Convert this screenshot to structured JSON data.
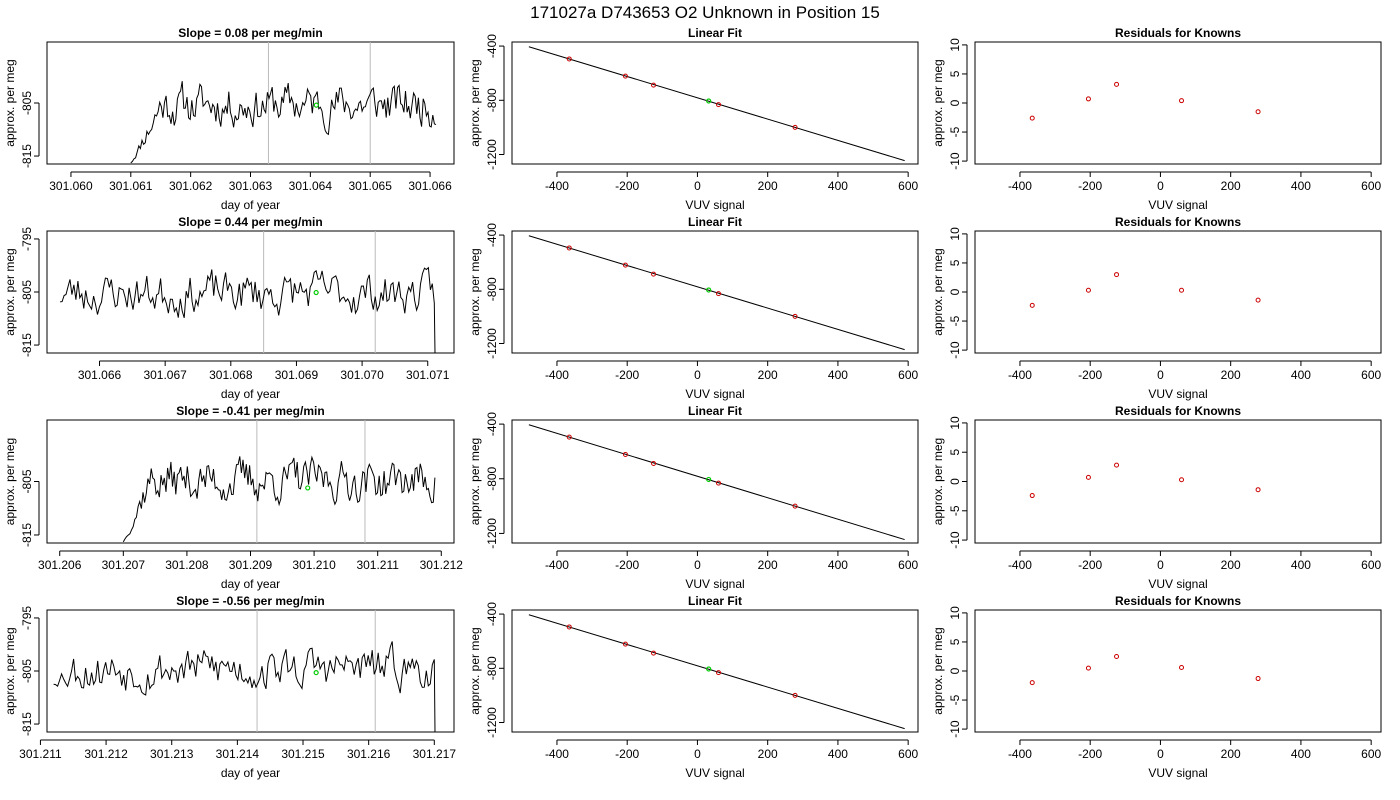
{
  "title": "171027a      D743653    O2 Unknown in Position  15",
  "colors": {
    "known": "#cc0000",
    "unknown": "#00cc00",
    "vline": "#bbbbbb",
    "line": "#000000"
  },
  "rows": [
    {
      "timeseries": {
        "title": "Slope =  0.08  per meg/min",
        "xlabel": "day of year",
        "ylabel": "approx. per meg",
        "xlim": [
          301.0596,
          301.0664
        ],
        "ylim": [
          -816.5,
          -793.5
        ],
        "xticks": [
          301.06,
          301.061,
          301.062,
          301.063,
          301.064,
          301.065,
          301.066
        ],
        "xtick_labels": [
          "301.060",
          "301.061",
          "301.062",
          "301.063",
          "301.064",
          "301.065",
          "301.066"
        ],
        "yticks": [
          -805,
          -815
        ],
        "ytick_labels": [
          "-805",
          "-815"
        ],
        "x_start": 301.061,
        "x_end": 301.0661,
        "start_level": -816.5,
        "ramp_end": 301.0615,
        "mean": -805.3,
        "vlines": [
          301.0633,
          301.065
        ],
        "unknown_point": {
          "x": 301.0641,
          "y": -805.4
        },
        "seed": 11
      },
      "fit": {
        "title": "Linear Fit",
        "xlabel": "VUV signal",
        "ylabel": "approx. per meg",
        "xlim": [
          -528,
          628
        ],
        "ylim": [
          -1270,
          -370
        ],
        "xticks": [
          -400,
          -200,
          0,
          200,
          400,
          600
        ],
        "xtick_labels": [
          "-400",
          "-200",
          "0",
          "200",
          "400",
          "600"
        ],
        "yticks": [
          -400,
          -800,
          -1200
        ],
        "ytick_labels": [
          "-400",
          "-800",
          "-1200"
        ],
        "line": {
          "x": [
            -480,
            590
          ],
          "y": [
            -405,
            -1245
          ]
        },
        "knowns": [
          {
            "x": -365,
            "y": -495
          },
          {
            "x": -205,
            "y": -622
          },
          {
            "x": -125,
            "y": -688
          },
          {
            "x": 60,
            "y": -832
          },
          {
            "x": 278,
            "y": -1000
          }
        ],
        "unknown": {
          "x": 32,
          "y": -805
        }
      },
      "residuals": {
        "title": "Residuals for Knowns",
        "xlabel": "VUV signal",
        "ylabel": "approx. per meg",
        "xlim": [
          -528,
          628
        ],
        "ylim": [
          -10.5,
          10.5
        ],
        "xticks": [
          -400,
          -200,
          0,
          200,
          400,
          600
        ],
        "xtick_labels": [
          "-400",
          "-200",
          "0",
          "200",
          "400",
          "600"
        ],
        "yticks": [
          10,
          5,
          0,
          -5,
          -10
        ],
        "ytick_labels": [
          "10",
          "5",
          "0",
          "-5",
          "-10"
        ],
        "points": [
          {
            "x": -365,
            "y": -2.6
          },
          {
            "x": -205,
            "y": 0.7
          },
          {
            "x": -125,
            "y": 3.2
          },
          {
            "x": 60,
            "y": 0.4
          },
          {
            "x": 278,
            "y": -1.5
          }
        ]
      }
    },
    {
      "timeseries": {
        "title": "Slope =  0.44  per meg/min",
        "xlabel": "day of year",
        "ylabel": "approx. per meg",
        "xlim": [
          301.0652,
          301.0714
        ],
        "ylim": [
          -816.5,
          -793.5
        ],
        "xticks": [
          301.066,
          301.067,
          301.068,
          301.069,
          301.07,
          301.071
        ],
        "xtick_labels": [
          "301.066",
          "301.067",
          "301.068",
          "301.069",
          "301.070",
          "301.071"
        ],
        "yticks": [
          -795,
          -805,
          -815
        ],
        "ytick_labels": [
          "-795",
          "-805",
          "-815"
        ],
        "x_start": 301.0654,
        "x_end": 301.0711,
        "start_level": null,
        "ramp_end": null,
        "mean": -805.2,
        "end_drop": -816.5,
        "vlines": [
          301.0685,
          301.0702
        ],
        "unknown_point": {
          "x": 301.0693,
          "y": -805.1
        },
        "seed": 23
      },
      "fit": {
        "title": "Linear Fit",
        "xlabel": "VUV signal",
        "ylabel": "approx. per meg",
        "xlim": [
          -528,
          628
        ],
        "ylim": [
          -1270,
          -370
        ],
        "xticks": [
          -400,
          -200,
          0,
          200,
          400,
          600
        ],
        "xtick_labels": [
          "-400",
          "-200",
          "0",
          "200",
          "400",
          "600"
        ],
        "yticks": [
          -400,
          -800,
          -1200
        ],
        "ytick_labels": [
          "-400",
          "-800",
          "-1200"
        ],
        "line": {
          "x": [
            -480,
            590
          ],
          "y": [
            -405,
            -1245
          ]
        },
        "knowns": [
          {
            "x": -365,
            "y": -495
          },
          {
            "x": -205,
            "y": -622
          },
          {
            "x": -125,
            "y": -688
          },
          {
            "x": 60,
            "y": -832
          },
          {
            "x": 278,
            "y": -1000
          }
        ],
        "unknown": {
          "x": 32,
          "y": -805
        }
      },
      "residuals": {
        "title": "Residuals for Knowns",
        "xlabel": "VUV signal",
        "ylabel": "approx. per meg",
        "xlim": [
          -528,
          628
        ],
        "ylim": [
          -10.5,
          10.5
        ],
        "xticks": [
          -400,
          -200,
          0,
          200,
          400,
          600
        ],
        "xtick_labels": [
          "-400",
          "-200",
          "0",
          "200",
          "400",
          "600"
        ],
        "yticks": [
          10,
          5,
          0,
          -5,
          -10
        ],
        "ytick_labels": [
          "10",
          "5",
          "0",
          "-5",
          "-10"
        ],
        "points": [
          {
            "x": -365,
            "y": -2.3
          },
          {
            "x": -205,
            "y": 0.3
          },
          {
            "x": -125,
            "y": 3.0
          },
          {
            "x": 60,
            "y": 0.3
          },
          {
            "x": 278,
            "y": -1.4
          }
        ]
      }
    },
    {
      "timeseries": {
        "title": "Slope =  -0.41  per meg/min",
        "xlabel": "day of year",
        "ylabel": "approx. per meg",
        "xlim": [
          301.2058,
          301.2122
        ],
        "ylim": [
          -816.5,
          -793.5
        ],
        "xticks": [
          301.206,
          301.207,
          301.208,
          301.209,
          301.21,
          301.211,
          301.212
        ],
        "xtick_labels": [
          "301.206",
          "301.207",
          "301.208",
          "301.209",
          "301.210",
          "301.211",
          "301.212"
        ],
        "yticks": [
          -805,
          -815
        ],
        "ytick_labels": [
          "-805",
          "-815"
        ],
        "x_start": 301.207,
        "x_end": 301.2119,
        "start_level": -816.5,
        "ramp_end": 301.2074,
        "mean": -804.8,
        "vlines": [
          301.2091,
          301.2108
        ],
        "unknown_point": {
          "x": 301.2099,
          "y": -806.2
        },
        "seed": 37
      },
      "fit": {
        "title": "Linear Fit",
        "xlabel": "VUV signal",
        "ylabel": "approx. per meg",
        "xlim": [
          -528,
          628
        ],
        "ylim": [
          -1270,
          -370
        ],
        "xticks": [
          -400,
          -200,
          0,
          200,
          400,
          600
        ],
        "xtick_labels": [
          "-400",
          "-200",
          "0",
          "200",
          "400",
          "600"
        ],
        "yticks": [
          -400,
          -800,
          -1200
        ],
        "ytick_labels": [
          "-400",
          "-800",
          "-1200"
        ],
        "line": {
          "x": [
            -480,
            590
          ],
          "y": [
            -405,
            -1245
          ]
        },
        "knowns": [
          {
            "x": -365,
            "y": -495
          },
          {
            "x": -205,
            "y": -622
          },
          {
            "x": -125,
            "y": -688
          },
          {
            "x": 60,
            "y": -832
          },
          {
            "x": 278,
            "y": -1000
          }
        ],
        "unknown": {
          "x": 32,
          "y": -805
        }
      },
      "residuals": {
        "title": "Residuals for Knowns",
        "xlabel": "VUV signal",
        "ylabel": "approx. per meg",
        "xlim": [
          -528,
          628
        ],
        "ylim": [
          -10.5,
          10.5
        ],
        "xticks": [
          -400,
          -200,
          0,
          200,
          400,
          600
        ],
        "xtick_labels": [
          "-400",
          "-200",
          "0",
          "200",
          "400",
          "600"
        ],
        "yticks": [
          10,
          5,
          0,
          -5,
          -10
        ],
        "ytick_labels": [
          "10",
          "5",
          "0",
          "-5",
          "-10"
        ],
        "points": [
          {
            "x": -365,
            "y": -2.4
          },
          {
            "x": -205,
            "y": 0.7
          },
          {
            "x": -125,
            "y": 2.8
          },
          {
            "x": 60,
            "y": 0.3
          },
          {
            "x": 278,
            "y": -1.4
          }
        ]
      }
    },
    {
      "timeseries": {
        "title": "Slope =  -0.56  per meg/min",
        "xlabel": "day of year",
        "ylabel": "approx. per meg",
        "xlim": [
          301.2111,
          301.2173
        ],
        "ylim": [
          -816.5,
          -793.5
        ],
        "xticks": [
          301.211,
          301.212,
          301.213,
          301.214,
          301.215,
          301.216,
          301.217
        ],
        "xtick_labels": [
          "301.211",
          "301.212",
          "301.213",
          "301.214",
          "301.215",
          "301.216",
          "301.217"
        ],
        "yticks": [
          -795,
          -805,
          -815
        ],
        "ytick_labels": [
          "-795",
          "-805",
          "-815"
        ],
        "x_start": 301.2112,
        "x_end": 301.217,
        "start_level": -807.5,
        "ramp_end": 301.2114,
        "mean": -804.5,
        "end_drop": -816.5,
        "vlines": [
          301.2143,
          301.2161
        ],
        "unknown_point": {
          "x": 301.2152,
          "y": -805.3
        },
        "seed": 53
      },
      "fit": {
        "title": "Linear Fit",
        "xlabel": "VUV signal",
        "ylabel": "approx. per meg",
        "xlim": [
          -528,
          628
        ],
        "ylim": [
          -1270,
          -370
        ],
        "xticks": [
          -400,
          -200,
          0,
          200,
          400,
          600
        ],
        "xtick_labels": [
          "-400",
          "-200",
          "0",
          "200",
          "400",
          "600"
        ],
        "yticks": [
          -400,
          -800,
          -1200
        ],
        "ytick_labels": [
          "-400",
          "-800",
          "-1200"
        ],
        "line": {
          "x": [
            -480,
            590
          ],
          "y": [
            -405,
            -1245
          ]
        },
        "knowns": [
          {
            "x": -365,
            "y": -495
          },
          {
            "x": -205,
            "y": -622
          },
          {
            "x": -125,
            "y": -688
          },
          {
            "x": 60,
            "y": -832
          },
          {
            "x": 278,
            "y": -1000
          }
        ],
        "unknown": {
          "x": 32,
          "y": -805
        }
      },
      "residuals": {
        "title": "Residuals for Knowns",
        "xlabel": "VUV signal",
        "ylabel": "approx. per meg",
        "xlim": [
          -528,
          628
        ],
        "ylim": [
          -10.5,
          10.5
        ],
        "xticks": [
          -400,
          -200,
          0,
          200,
          400,
          600
        ],
        "xtick_labels": [
          "-400",
          "-200",
          "0",
          "200",
          "400",
          "600"
        ],
        "yticks": [
          10,
          5,
          0,
          -5,
          -10
        ],
        "ytick_labels": [
          "10",
          "5",
          "0",
          "-5",
          "-10"
        ],
        "points": [
          {
            "x": -365,
            "y": -2.0
          },
          {
            "x": -205,
            "y": 0.5
          },
          {
            "x": -125,
            "y": 2.5
          },
          {
            "x": 60,
            "y": 0.6
          },
          {
            "x": 278,
            "y": -1.3
          }
        ]
      }
    }
  ],
  "chart_data": [
    {
      "type": "line",
      "title": "Slope =  0.08  per meg/min",
      "xlabel": "day of year",
      "ylabel": "approx. per meg",
      "xlim": [
        301.0596,
        301.0664
      ],
      "ylim": [
        -816.5,
        -793.5
      ],
      "series": [
        {
          "x": [
            301.061,
            301.0661
          ],
          "y_mean": -805.3
        }
      ]
    },
    {
      "type": "line",
      "title": "Slope =  0.44  per meg/min",
      "xlabel": "day of year",
      "ylabel": "approx. per meg",
      "xlim": [
        301.0652,
        301.0714
      ],
      "ylim": [
        -816.5,
        -793.5
      ],
      "series": [
        {
          "x": [
            301.0654,
            301.0711
          ],
          "y_mean": -805.2
        }
      ]
    },
    {
      "type": "line",
      "title": "Slope =  -0.41  per meg/min",
      "xlabel": "day of year",
      "ylabel": "approx. per meg",
      "xlim": [
        301.2058,
        301.2122
      ],
      "ylim": [
        -816.5,
        -793.5
      ],
      "series": [
        {
          "x": [
            301.207,
            301.2119
          ],
          "y_mean": -804.8
        }
      ]
    },
    {
      "type": "line",
      "title": "Slope =  -0.56  per meg/min",
      "xlabel": "day of year",
      "ylabel": "approx. per meg",
      "xlim": [
        301.2111,
        301.2173
      ],
      "ylim": [
        -816.5,
        -793.5
      ],
      "series": [
        {
          "x": [
            301.2112,
            301.217
          ],
          "y_mean": -804.5
        }
      ]
    },
    {
      "type": "scatter",
      "title": "Linear Fit",
      "xlabel": "VUV signal",
      "ylabel": "approx. per meg",
      "knowns_x": [
        -365,
        -205,
        -125,
        60,
        278
      ],
      "knowns_y": [
        -495,
        -622,
        -688,
        -832,
        -1000
      ],
      "unknown": [
        32,
        -805
      ]
    },
    {
      "type": "scatter",
      "title": "Residuals for Knowns",
      "xlabel": "VUV signal",
      "ylabel": "approx. per meg",
      "x": [
        -365,
        -205,
        -125,
        60,
        278
      ],
      "y": [
        -2.6,
        0.7,
        3.2,
        0.4,
        -1.5
      ]
    }
  ]
}
